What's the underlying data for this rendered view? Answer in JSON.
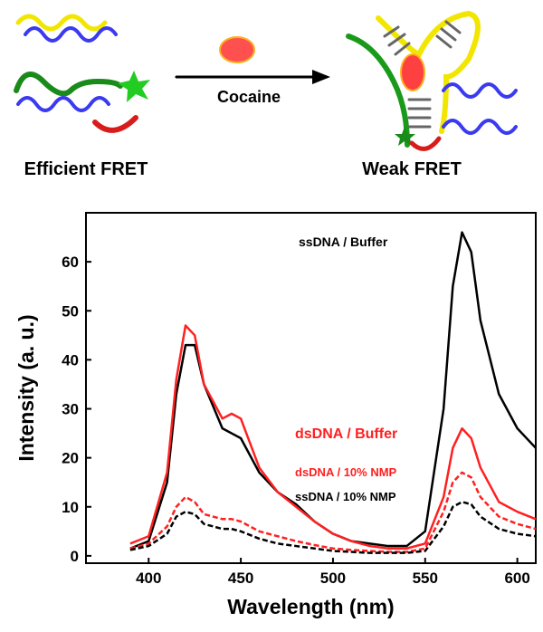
{
  "scheme": {
    "left_label": "Efficient FRET",
    "arrow_label": "Cocaine",
    "right_label": "Weak FRET"
  },
  "chart_data": {
    "type": "line",
    "xlabel": "Wavelength (nm)",
    "ylabel": "Intensity (a. u.)",
    "x": [
      390,
      400,
      410,
      415,
      420,
      425,
      430,
      440,
      445,
      450,
      460,
      470,
      480,
      490,
      500,
      510,
      520,
      530,
      540,
      550,
      560,
      565,
      570,
      575,
      580,
      590,
      600,
      610
    ],
    "series": [
      {
        "name": "ssDNA / Buffer",
        "color": "#000000",
        "linestyle": "solid",
        "values": [
          1.5,
          3,
          15,
          33,
          43,
          43,
          35,
          26,
          25,
          24,
          17,
          13,
          10.5,
          7,
          4.5,
          3,
          2.5,
          2,
          2,
          5,
          30,
          55,
          66,
          62,
          48,
          33,
          26,
          22
        ]
      },
      {
        "name": "dsDNA / Buffer",
        "color": "#ff2020",
        "linestyle": "solid",
        "values": [
          2.5,
          4,
          17,
          36,
          47,
          45,
          35,
          28,
          29,
          28,
          18,
          13,
          10,
          7,
          4.5,
          3,
          2,
          1.5,
          1.5,
          2.5,
          12,
          22,
          26,
          24,
          18,
          11,
          9,
          7.5
        ]
      },
      {
        "name": "dsDNA / 10% NMP",
        "color": "#ff2020",
        "linestyle": "dashed",
        "values": [
          1.5,
          2.5,
          6,
          10,
          12,
          11,
          8.5,
          7.5,
          7.5,
          7,
          5,
          4,
          3,
          2.2,
          1.5,
          1.2,
          1,
          0.8,
          0.8,
          1.5,
          9,
          15,
          17,
          16,
          12,
          8,
          6.5,
          5.5
        ]
      },
      {
        "name": "ssDNA / 10% NMP",
        "color": "#000000",
        "linestyle": "dashed",
        "values": [
          1.2,
          2,
          4.5,
          8,
          9,
          8.5,
          6.5,
          5.5,
          5.5,
          5,
          3.5,
          2.5,
          2,
          1.5,
          1,
          0.8,
          0.6,
          0.6,
          0.6,
          1,
          6,
          10,
          11,
          10.5,
          8,
          5.5,
          4.5,
          4
        ]
      }
    ],
    "xlim": [
      366,
      610
    ],
    "xticks": [
      400,
      450,
      500,
      550,
      600
    ],
    "ylim": [
      -1.5,
      70
    ],
    "yticks": [
      0,
      10,
      20,
      30,
      40,
      50,
      60
    ]
  }
}
